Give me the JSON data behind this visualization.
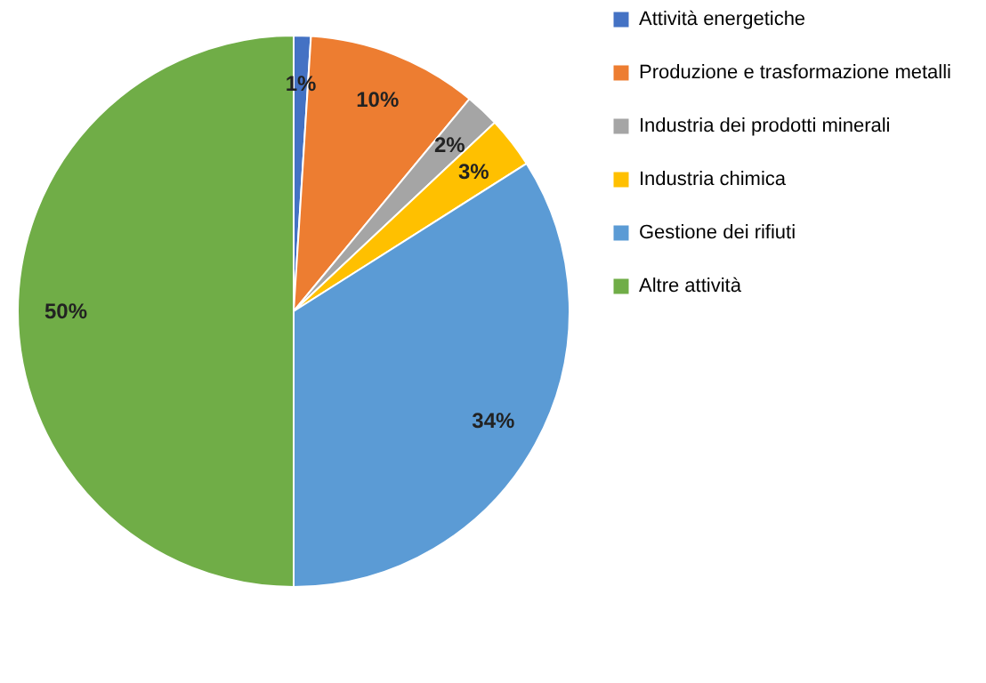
{
  "chart_data": {
    "type": "pie",
    "categories": [
      "Attività energetiche",
      "Produzione e trasformazione metalli",
      "Industria dei prodotti minerali",
      "Industria chimica",
      "Gestione dei rifiuti",
      "Altre attività"
    ],
    "values": [
      1,
      10,
      2,
      3,
      34,
      50
    ],
    "colors": [
      "#4472c4",
      "#ed7d31",
      "#a5a5a5",
      "#ffc000",
      "#5b9bd5",
      "#70ad47"
    ],
    "value_labels": [
      "1%",
      "10%",
      "2%",
      "3%",
      "34%",
      "50%"
    ],
    "legend": "right"
  }
}
